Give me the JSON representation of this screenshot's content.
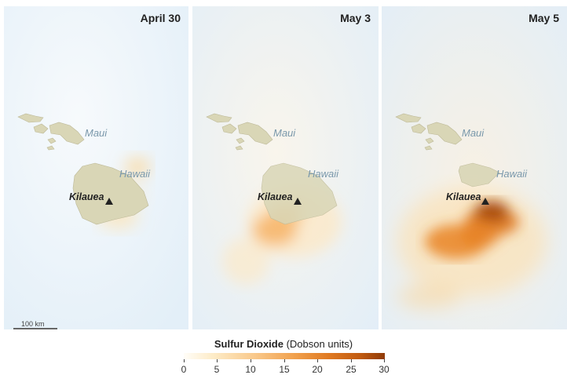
{
  "panels": [
    {
      "date": "April 30",
      "maui_label": "Maui",
      "hawaii_label": "Hawaii",
      "volcano_label": "Kilauea"
    },
    {
      "date": "May 3",
      "maui_label": "Maui",
      "hawaii_label": "Hawaii",
      "volcano_label": "Kilauea"
    },
    {
      "date": "May 5",
      "maui_label": "Maui",
      "hawaii_label": "Hawaii",
      "volcano_label": "Kilauea"
    }
  ],
  "scale_bar": "100 km",
  "legend": {
    "title": "Sulfur Dioxide",
    "units": "(Dobson units)",
    "ticks": [
      "0",
      "5",
      "10",
      "15",
      "20",
      "25",
      "30"
    ],
    "colors": [
      "#fffdf8",
      "#fdebc6",
      "#f9c98c",
      "#f1a14d",
      "#e07a22",
      "#c05a10",
      "#8f3a07"
    ]
  }
}
